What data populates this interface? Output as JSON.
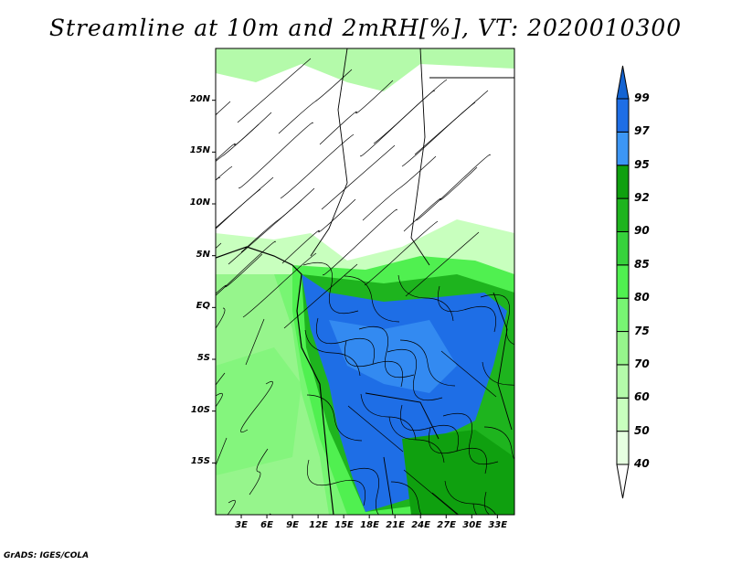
{
  "title": "Streamline at 10m and 2mRH[%], VT: 2020010300",
  "credit": "GrADS: IGES/COLA",
  "map": {
    "lon_range": [
      0,
      35
    ],
    "lat_range": [
      -20,
      25
    ],
    "lat_labels": [
      {
        "lat": 20,
        "text": "20N"
      },
      {
        "lat": 15,
        "text": "15N"
      },
      {
        "lat": 10,
        "text": "10N"
      },
      {
        "lat": 5,
        "text": "5N"
      },
      {
        "lat": 0,
        "text": "EQ"
      },
      {
        "lat": -5,
        "text": "5S"
      },
      {
        "lat": -10,
        "text": "10S"
      },
      {
        "lat": -15,
        "text": "15S"
      }
    ],
    "lon_labels": [
      {
        "lon": 3,
        "text": "3E"
      },
      {
        "lon": 6,
        "text": "6E"
      },
      {
        "lon": 9,
        "text": "9E"
      },
      {
        "lon": 12,
        "text": "12E"
      },
      {
        "lon": 15,
        "text": "15E"
      },
      {
        "lon": 18,
        "text": "18E"
      },
      {
        "lon": 21,
        "text": "21E"
      },
      {
        "lon": 24,
        "text": "24E"
      },
      {
        "lon": 27,
        "text": "27E"
      },
      {
        "lon": 30,
        "text": "30E"
      },
      {
        "lon": 33,
        "text": "33E"
      }
    ]
  },
  "colorbar": {
    "levels": [
      "40",
      "50",
      "60",
      "70",
      "75",
      "80",
      "85",
      "90",
      "92",
      "95",
      "97",
      "99"
    ],
    "colors": [
      "#e6ffe1",
      "#c8ffbe",
      "#b4faaa",
      "#96f58c",
      "#78f573",
      "#50f050",
      "#37d23c",
      "#1eb41e",
      "#0fa00f",
      "#3c96f5",
      "#1e6ee6"
    ],
    "low_arrow_color": "#ffffff",
    "high_arrow_color": "#1464d2"
  }
}
